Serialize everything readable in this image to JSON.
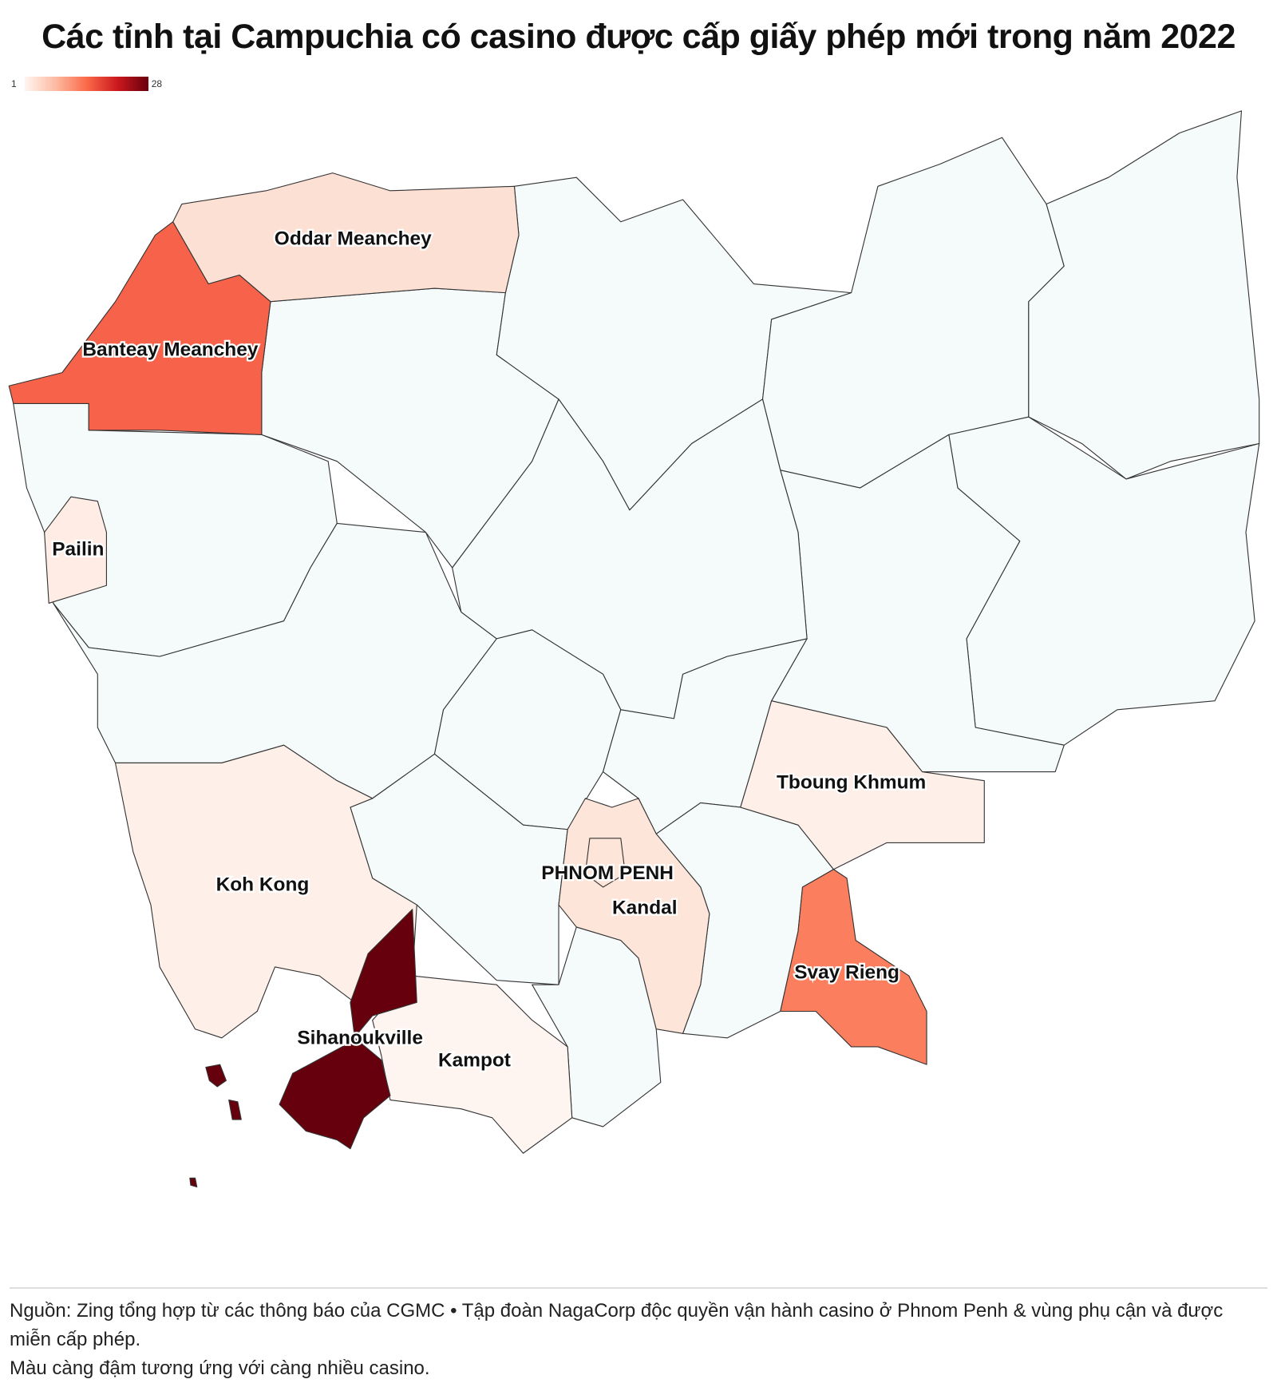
{
  "title": "Các tỉnh tại Campuchia có casino được cấp giấy phép mới trong năm 2022",
  "legend": {
    "min": "1",
    "max": "28",
    "colors": [
      "#fff5f0",
      "#fcbba1",
      "#fb6a4a",
      "#cb181d",
      "#67000d"
    ]
  },
  "no_data_color": "#f5fbfb",
  "provinces": {
    "sihanoukville": {
      "label": "Sihanoukville",
      "color": "#67000d"
    },
    "banteay_meanchey": {
      "label": "Banteay Meanchey",
      "color": "#f6634a"
    },
    "svay_rieng": {
      "label": "Svay Rieng",
      "color": "#fb7e5e"
    },
    "oddar_meanchey": {
      "label": "Oddar Meanchey",
      "color": "#fde0d4"
    },
    "kandal": {
      "label": "Kandal",
      "color": "#fde5da"
    },
    "phnom_penh": {
      "label": "PHNOM PENH",
      "color": "#fde5da"
    },
    "pailin": {
      "label": "Pailin",
      "color": "#feece5"
    },
    "koh_kong": {
      "label": "Koh Kong",
      "color": "#feefe8"
    },
    "tboung_khmum": {
      "label": "Tboung Khmum",
      "color": "#feefe8"
    },
    "kampot": {
      "label": "Kampot",
      "color": "#fef4f0"
    }
  },
  "footer": {
    "source": "Nguồn: Zing tổng hợp từ các thông báo của CGMC • Tập đoàn NagaCorp độc quyền vận hành casino ở Phnom Penh & vùng phụ cận và được miễn cấp phép.",
    "note": "Màu càng đậm tương ứng với càng nhiều casino."
  }
}
